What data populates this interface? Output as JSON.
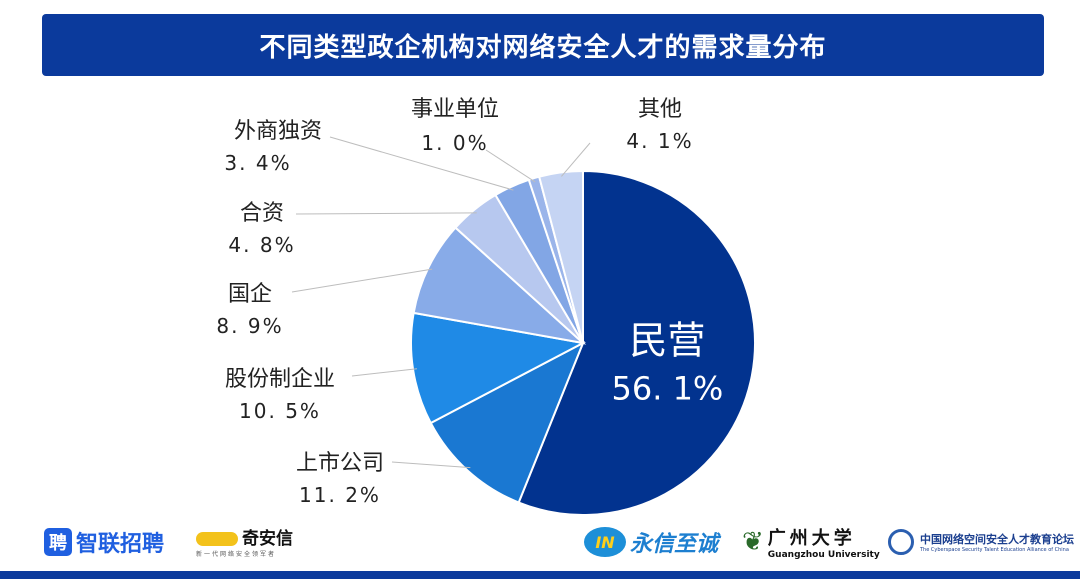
{
  "chart_data": {
    "type": "pie",
    "title": "不同类型政企机构对网络安全人才的需求量分布",
    "start": "top",
    "direction": "clockwise",
    "slices": [
      {
        "label": "民营",
        "value": 56.1,
        "display": "56. 1%",
        "color": "#02338f"
      },
      {
        "label": "上市公司",
        "value": 11.2,
        "display": "11. 2%",
        "color": "#1a78d2"
      },
      {
        "label": "股份制企业",
        "value": 10.5,
        "display": "10. 5%",
        "color": "#1f8ae6"
      },
      {
        "label": "国企",
        "value": 8.9,
        "display": "8. 9%",
        "color": "#88abe8"
      },
      {
        "label": "合资",
        "value": 4.8,
        "display": "4. 8%",
        "color": "#b7c8ef"
      },
      {
        "label": "外商独资",
        "value": 3.4,
        "display": "3. 4%",
        "color": "#82a6e5"
      },
      {
        "label": "事业单位",
        "value": 1.0,
        "display": "1. 0%",
        "color": "#9bb5ea"
      },
      {
        "label": "其他",
        "value": 4.1,
        "display": "4. 1%",
        "color": "#c5d4f3"
      }
    ]
  },
  "logos": {
    "zhaopin": "智联招聘",
    "zhaopin_mark": "聘",
    "qianxin": "奇安信",
    "qianxin_tagline": "新一代网络安全领军者",
    "yongxin": "永信至诚",
    "yongxin_mark": "IN",
    "gzhu": "广州大学",
    "gzhu_en": "Guangzhou University",
    "alliance": "中国网络空间安全人才教育论坛",
    "alliance_en": "The Cyberspace Security Talent Education Alliance of China"
  }
}
